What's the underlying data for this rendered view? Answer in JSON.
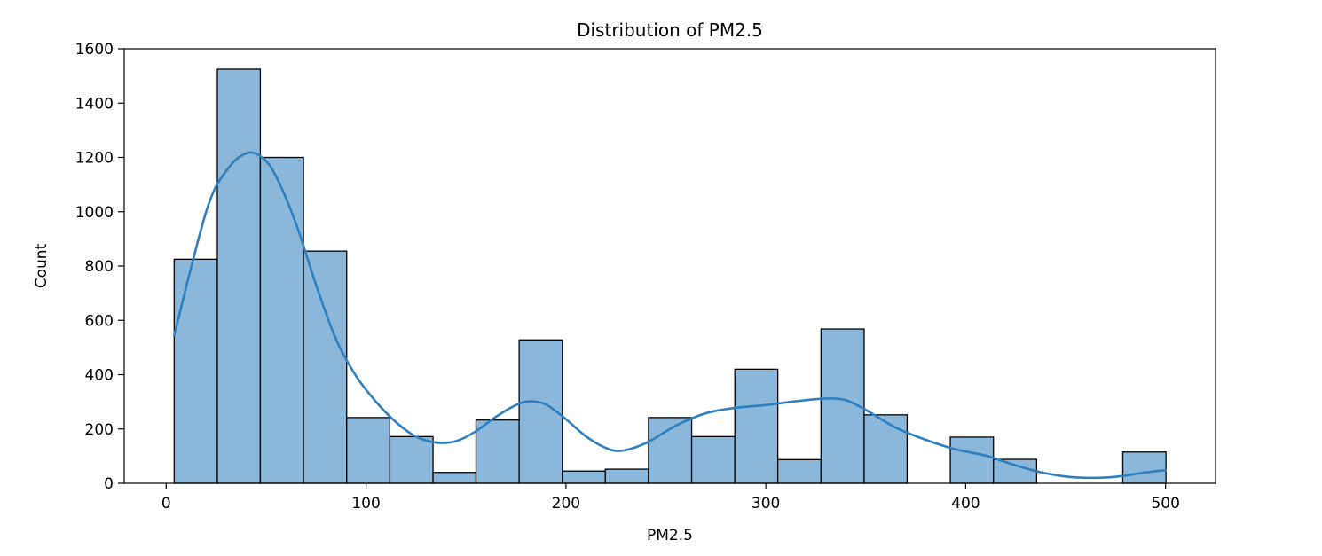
{
  "chart_data": {
    "type": "bar",
    "title": "Distribution of PM2.5",
    "xlabel": "PM2.5",
    "ylabel": "Count",
    "xlim": [
      -21,
      525
    ],
    "ylim": [
      0,
      1600
    ],
    "x_ticks": [
      0,
      100,
      200,
      300,
      400,
      500
    ],
    "y_ticks": [
      0,
      200,
      400,
      600,
      800,
      1000,
      1200,
      1400,
      1600
    ],
    "grid": false,
    "bin_edges": [
      4,
      25.6,
      47.1,
      68.7,
      90.3,
      111.9,
      133.5,
      155,
      176.6,
      198.2,
      219.7,
      241.3,
      262.9,
      284.5,
      306,
      327.6,
      349.2,
      370.7,
      392.3,
      413.9,
      435.5,
      457,
      478.6,
      500.2
    ],
    "values": [
      825,
      1525,
      1200,
      855,
      242,
      172,
      40,
      233,
      528,
      45,
      52,
      242,
      172,
      420,
      87,
      568,
      252,
      0,
      170,
      88,
      0,
      0,
      115
    ],
    "bar_color": "#8bb8da",
    "edge_color": "#000000",
    "kde": {
      "color": "#2f7fbf",
      "x": [
        4,
        20,
        30,
        40,
        48,
        55,
        65,
        75,
        85,
        95,
        105,
        115,
        125,
        135,
        145,
        155,
        165,
        175,
        182,
        190,
        200,
        210,
        220,
        228,
        240,
        255,
        270,
        285,
        300,
        315,
        330,
        340,
        350,
        365,
        380,
        395,
        410,
        420,
        435,
        450,
        462,
        475,
        490,
        500
      ],
      "y": [
        545,
        1000,
        1150,
        1215,
        1200,
        1130,
        955,
        730,
        530,
        395,
        300,
        225,
        172,
        150,
        155,
        192,
        245,
        288,
        302,
        290,
        236,
        173,
        130,
        120,
        148,
        212,
        258,
        278,
        288,
        302,
        312,
        306,
        270,
        205,
        160,
        125,
        102,
        78,
        45,
        25,
        20,
        24,
        40,
        48
      ]
    }
  }
}
